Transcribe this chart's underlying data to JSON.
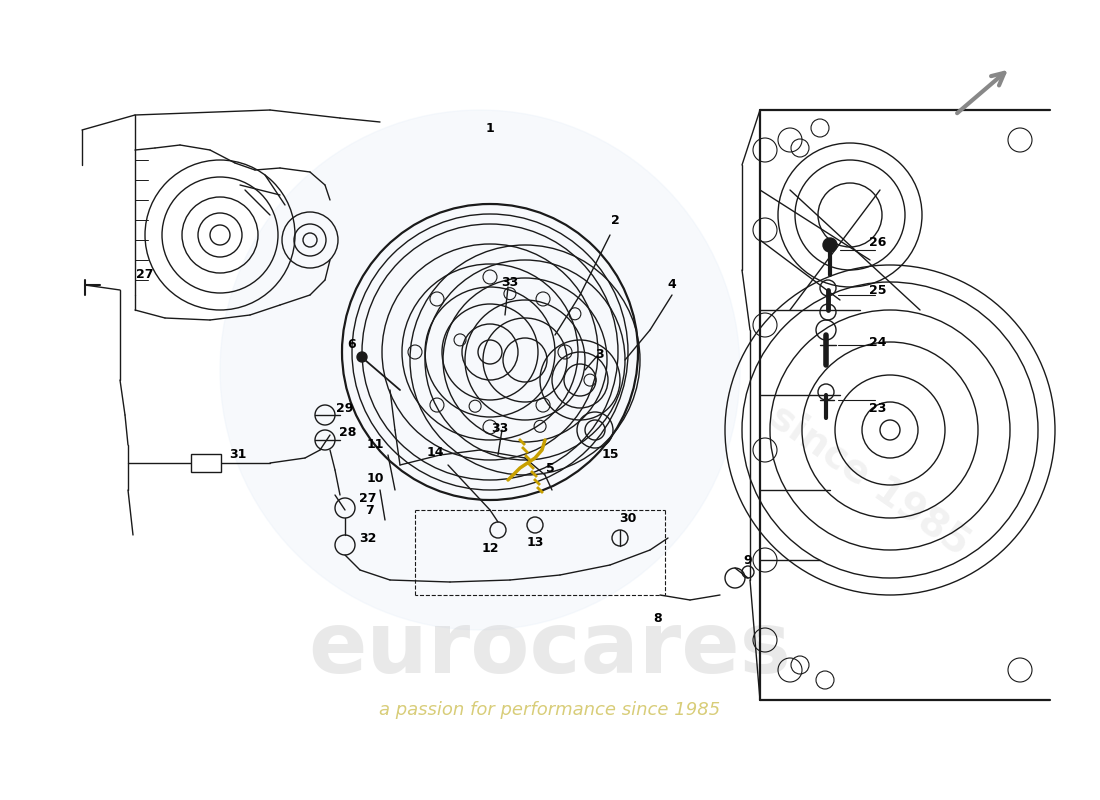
{
  "background_color": "#ffffff",
  "watermark_text": "eurocares",
  "watermark_subtext": "a passion for performance since 1985",
  "lc": "#1a1a1a",
  "lw_main": 1.0,
  "lw_thick": 1.6,
  "fig_w": 11.0,
  "fig_h": 8.0,
  "xlim": [
    0,
    1100
  ],
  "ylim": [
    0,
    800
  ],
  "label_fontsize": 9,
  "watermark_color": "#d0d0d0",
  "watermark_alpha": 0.45,
  "subtext_color": "#c8b840",
  "subtext_alpha": 0.7,
  "arrow_color": "#888888"
}
